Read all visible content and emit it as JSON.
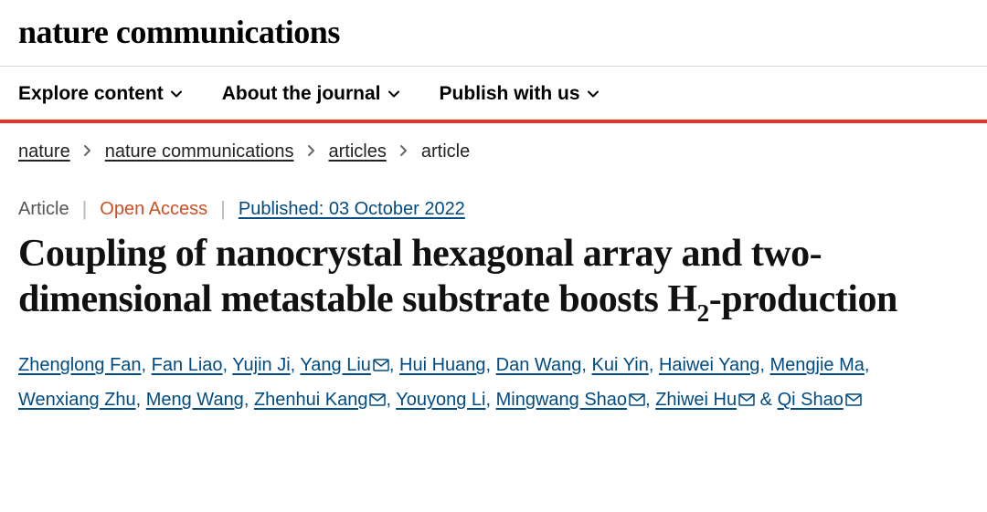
{
  "header": {
    "journal": "nature communications"
  },
  "nav": {
    "items": [
      {
        "label": "Explore content"
      },
      {
        "label": "About the journal"
      },
      {
        "label": "Publish with us"
      }
    ]
  },
  "breadcrumb": {
    "items": [
      {
        "label": "nature",
        "link": true
      },
      {
        "label": "nature communications",
        "link": true
      },
      {
        "label": "articles",
        "link": true
      },
      {
        "label": "article",
        "link": false
      }
    ]
  },
  "meta": {
    "type": "Article",
    "access": "Open Access",
    "published_label": "Published: 03 October 2022"
  },
  "article": {
    "title_pre": "Coupling of nanocrystal hexagonal array and two-dimensional metastable substrate boosts H",
    "title_sub": "2",
    "title_post": "-production"
  },
  "authors": [
    {
      "name": "Zhenglong Fan",
      "mail": false
    },
    {
      "name": "Fan Liao",
      "mail": false
    },
    {
      "name": "Yujin Ji",
      "mail": false
    },
    {
      "name": "Yang Liu",
      "mail": true
    },
    {
      "name": "Hui Huang",
      "mail": false
    },
    {
      "name": "Dan Wang",
      "mail": false
    },
    {
      "name": "Kui Yin",
      "mail": false
    },
    {
      "name": "Haiwei Yang",
      "mail": false
    },
    {
      "name": "Mengjie Ma",
      "mail": false
    },
    {
      "name": "Wenxiang Zhu",
      "mail": false
    },
    {
      "name": "Meng Wang",
      "mail": false
    },
    {
      "name": "Zhenhui Kang",
      "mail": true
    },
    {
      "name": "Youyong Li",
      "mail": false
    },
    {
      "name": "Mingwang Shao",
      "mail": true
    },
    {
      "name": "Zhiwei Hu",
      "mail": true
    },
    {
      "name": "Qi Shao",
      "mail": true
    }
  ],
  "colors": {
    "accent_red": "#e63329",
    "open_access": "#d04e22",
    "link_blue": "#004b83"
  }
}
